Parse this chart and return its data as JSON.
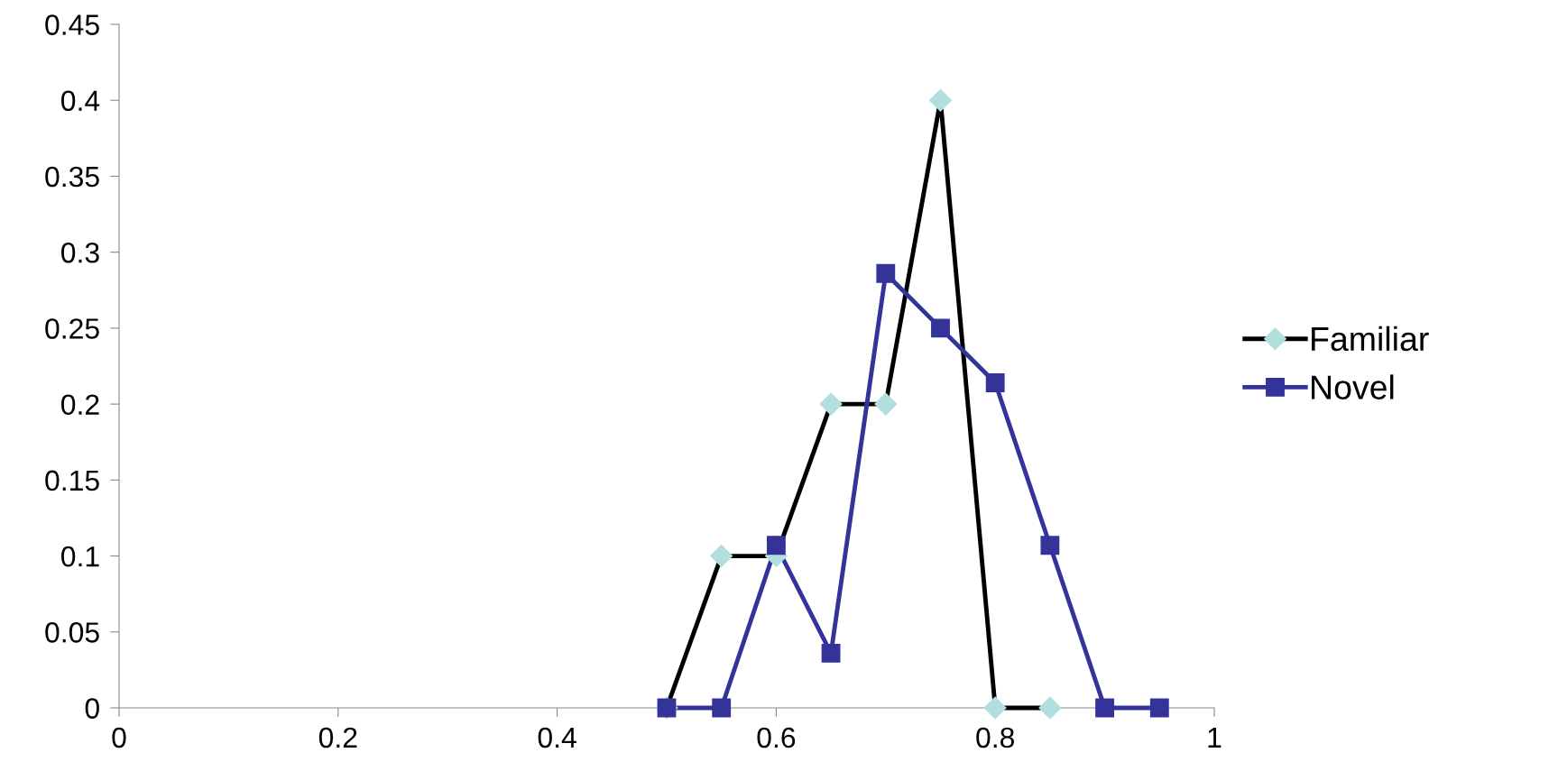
{
  "chart_data": {
    "type": "line",
    "series": [
      {
        "name": "Familiar",
        "color": "#000000",
        "colors": [
          "#b3dede",
          "#b3dede",
          "#b3dede",
          "#b3dede",
          "#b3dede",
          "#b3dede",
          "#b3dede",
          "#b3dede"
        ],
        "marker": "diamond",
        "x": [
          0.5,
          0.55,
          0.6,
          0.65,
          0.7,
          0.75,
          0.8,
          0.85
        ],
        "values": [
          0,
          0.1,
          0.1,
          0.2,
          0.2,
          0.4,
          0,
          0
        ]
      },
      {
        "name": "Novel",
        "color": "#333399",
        "marker": "square",
        "x": [
          0.5,
          0.55,
          0.6,
          0.65,
          0.7,
          0.75,
          0.8,
          0.85,
          0.9,
          0.95
        ],
        "values": [
          0,
          0,
          0.107,
          0.036,
          0.286,
          0.25,
          0.214,
          0.107,
          0,
          0
        ]
      }
    ],
    "xlim": [
      0,
      1
    ],
    "xticks": [
      0,
      0.2,
      0.4,
      0.6,
      0.8,
      1
    ],
    "ylim": [
      0,
      0.45
    ],
    "yticks": [
      0,
      0.05,
      0.1,
      0.15,
      0.2,
      0.25,
      0.3,
      0.35,
      0.4,
      0.45
    ],
    "grid": false,
    "legend": "right",
    "line_style": "solid"
  }
}
